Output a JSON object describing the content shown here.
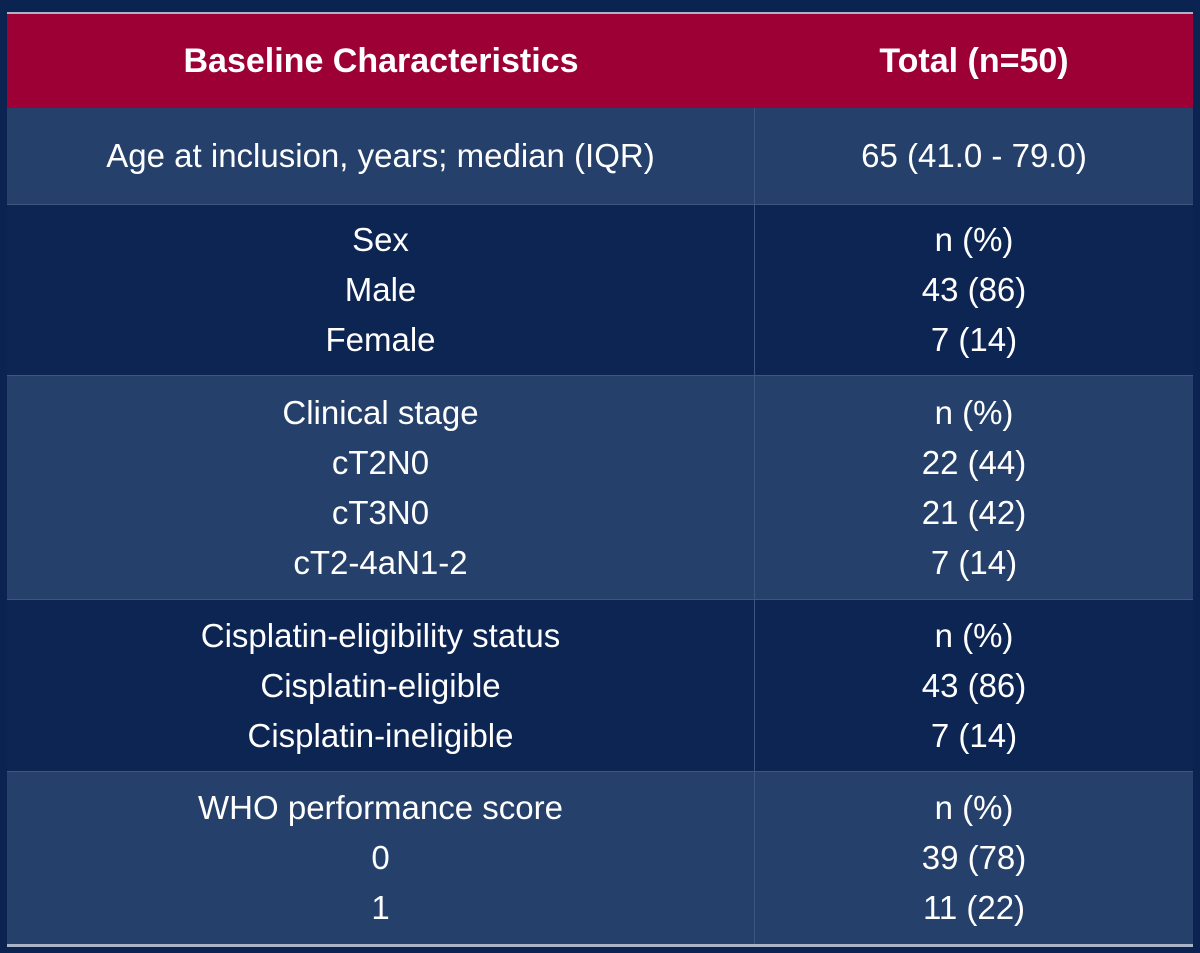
{
  "table": {
    "header": [
      "Baseline Characteristics",
      "Total (n=50)"
    ],
    "rows": [
      [
        [
          "Age at inclusion, years; median (IQR)"
        ],
        [
          "65 (41.0 - 79.0)"
        ]
      ],
      [
        [
          "Sex",
          "Male",
          "Female"
        ],
        [
          "n (%)",
          "43 (86)",
          "7 (14)"
        ]
      ],
      [
        [
          "Clinical stage",
          "cT2N0",
          "cT3N0",
          "cT2-4aN1-2"
        ],
        [
          "n (%)",
          "22 (44)",
          "21 (42)",
          "7 (14)"
        ]
      ],
      [
        [
          "Cisplatin-eligibility status",
          "Cisplatin-eligible",
          "Cisplatin-ineligible"
        ],
        [
          "n (%)",
          "43 (86)",
          "7 (14)"
        ]
      ],
      [
        [
          "WHO performance score",
          "0",
          "1"
        ],
        [
          "n (%)",
          "39 (78)",
          "11 (22)"
        ]
      ]
    ]
  }
}
